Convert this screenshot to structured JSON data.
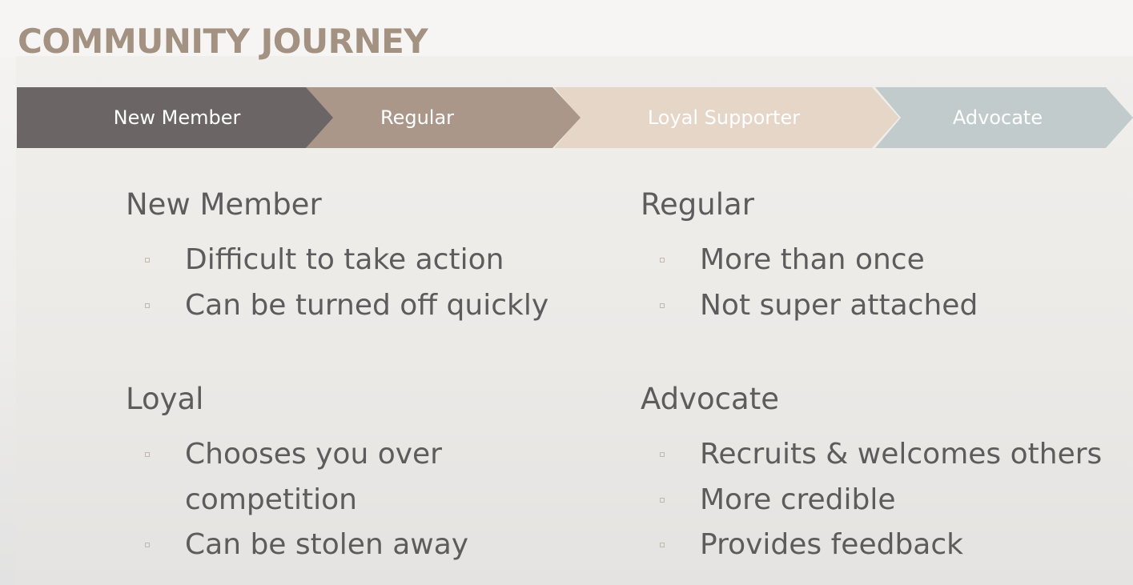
{
  "title": "COMMUNITY JOURNEY",
  "colors": {
    "title": "#a39182",
    "text": "#5c5c5c",
    "bullet_marker": "#c3b8af",
    "stage_new_member": "#6b6566",
    "stage_regular": "#ab968a",
    "stage_loyal_supporter": "#e5d6c8",
    "stage_advocate": "#c2cbcc"
  },
  "stages": [
    {
      "label": "New Member"
    },
    {
      "label": "Regular"
    },
    {
      "label": "Loyal Supporter"
    },
    {
      "label": "Advocate"
    }
  ],
  "blocks": [
    {
      "heading": "New Member",
      "bullets": [
        "Difficult to take action",
        "Can be turned off quickly"
      ]
    },
    {
      "heading": "Regular",
      "bullets": [
        "More than once",
        "Not super attached"
      ]
    },
    {
      "heading": "Loyal",
      "bullets": [
        "Chooses you over competition",
        "Can be stolen away"
      ]
    },
    {
      "heading": "Advocate",
      "bullets": [
        "Recruits & welcomes others",
        "More credible",
        "Provides feedback"
      ]
    }
  ]
}
